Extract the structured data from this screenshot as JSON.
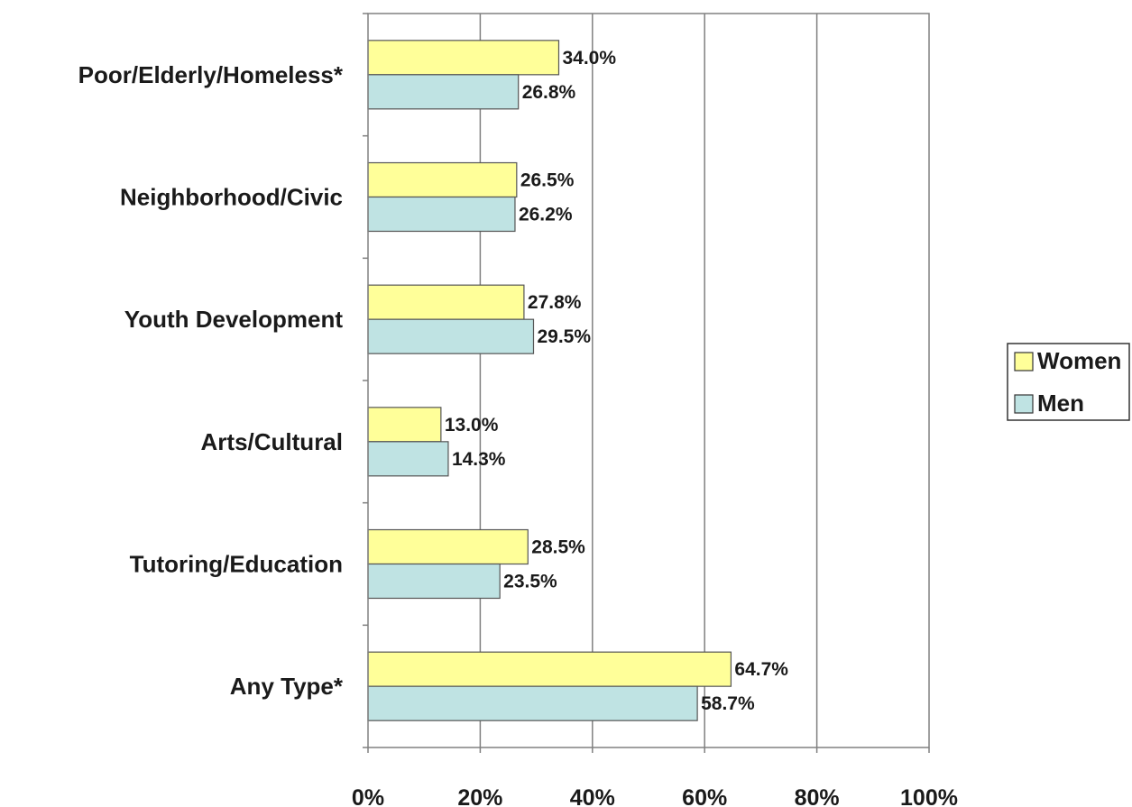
{
  "chart_data": {
    "type": "bar",
    "orientation": "horizontal",
    "categories": [
      "Poor/Elderly/Homeless*",
      "Neighborhood/Civic",
      "Youth Development",
      "Arts/Cultural",
      "Tutoring/Education",
      "Any Type*"
    ],
    "series": [
      {
        "name": "Women",
        "color": "#ffff99",
        "values": [
          34.0,
          26.5,
          27.8,
          13.0,
          28.5,
          64.7
        ],
        "labels": [
          "34.0%",
          "26.5%",
          "27.8%",
          "13.0%",
          "28.5%",
          "64.7%"
        ]
      },
      {
        "name": "Men",
        "color": "#bfe3e3",
        "values": [
          26.8,
          26.2,
          29.5,
          14.3,
          23.5,
          58.7
        ],
        "labels": [
          "26.8%",
          "26.2%",
          "29.5%",
          "14.3%",
          "23.5%",
          "58.7%"
        ]
      }
    ],
    "xlim": [
      0,
      100
    ],
    "xticks": [
      0,
      20,
      40,
      60,
      80,
      100
    ],
    "xtick_labels": [
      "0%",
      "20%",
      "40%",
      "60%",
      "80%",
      "100%"
    ],
    "grid": "vertical major gridlines",
    "legend_position": "right"
  }
}
